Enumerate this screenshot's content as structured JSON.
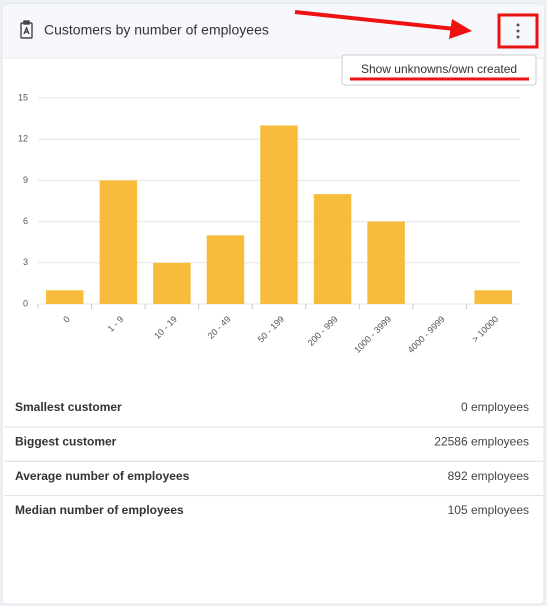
{
  "header": {
    "title": "Customers by number of employees"
  },
  "menu": {
    "item": "Show unknowns/own created"
  },
  "chart_data": {
    "type": "bar",
    "categories": [
      "0",
      "1 - 9",
      "10 - 19",
      "20 - 49",
      "50 - 199",
      "200 - 999",
      "1000 - 3999",
      "4000 - 9999",
      "> 10000"
    ],
    "values": [
      1,
      9,
      3,
      5,
      13,
      8,
      6,
      0,
      1
    ],
    "color": "#f7bc3c",
    "ylim": [
      0,
      15
    ],
    "yticks": [
      0,
      3,
      6,
      9,
      12,
      15
    ],
    "grid": true
  },
  "table": {
    "rows": [
      [
        "Smallest customer",
        "0 employees"
      ],
      [
        "Biggest customer",
        "22586 employees"
      ],
      [
        "Average number of employees",
        "892 employees"
      ],
      [
        "Median number of employees",
        "105 employees"
      ]
    ]
  }
}
